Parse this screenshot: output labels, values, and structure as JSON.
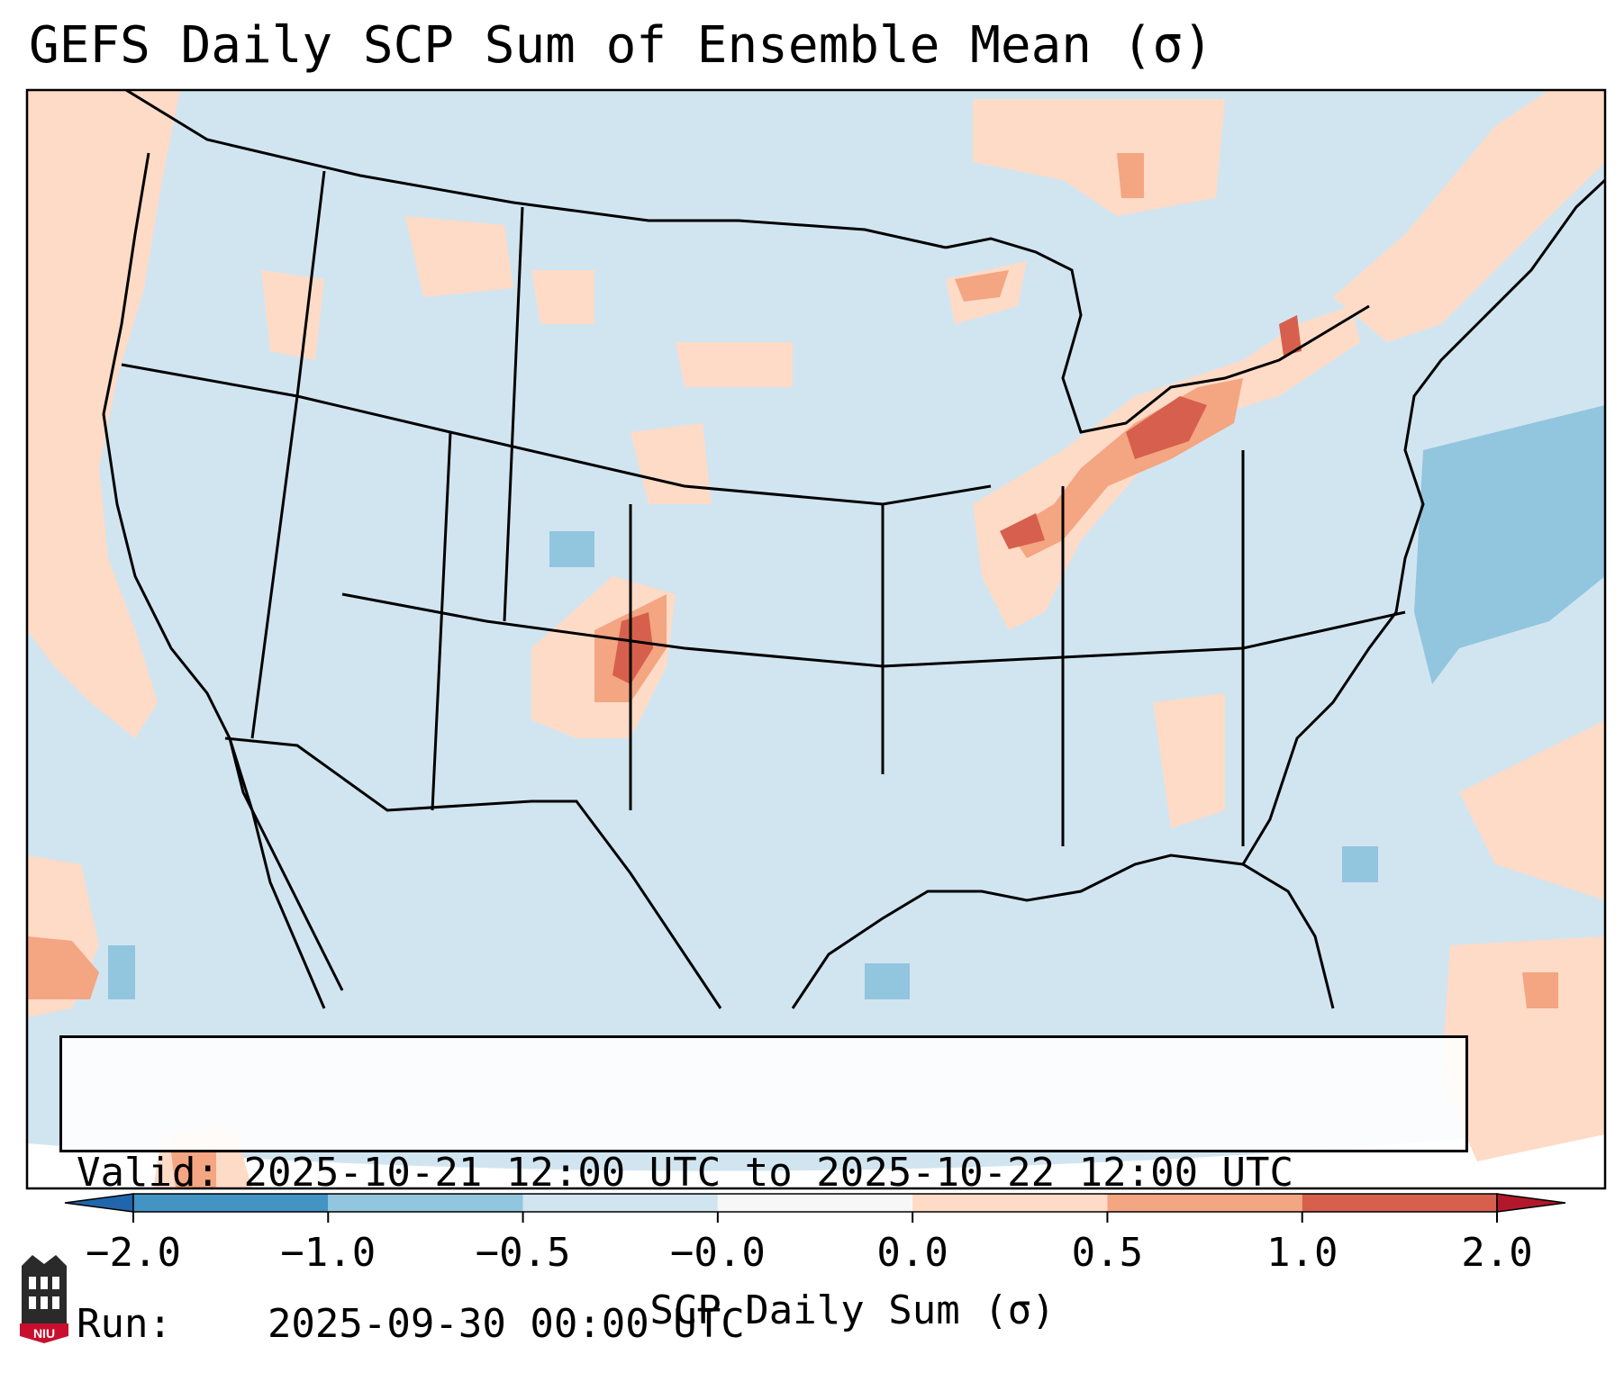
{
  "title": "GEFS Daily SCP Sum of Ensemble Mean (σ)",
  "info": {
    "valid_label": "Valid:",
    "valid_value": "2025-10-21 12:00 UTC to 2025-10-22 12:00 UTC",
    "run_label": "Run:",
    "run_value": "2025-09-30 00:00 UTC"
  },
  "colorbar": {
    "label": "SCP Daily Sum (σ)",
    "tick_labels": [
      "−2.0",
      "−1.0",
      "−0.5",
      "−0.0",
      "0.0",
      "0.5",
      "1.0",
      "2.0"
    ],
    "extend": "both",
    "colors": [
      "#2166ac",
      "#4393c3",
      "#92c5de",
      "#d1e5f0",
      "#f7f7f7",
      "#fddbc7",
      "#f4a582",
      "#d6604d",
      "#b2182b"
    ]
  },
  "map": {
    "background_color": "#d1e5f0",
    "positive_weak_color": "#fddbc7",
    "positive_mod_color": "#f4a582",
    "positive_strong_color": "#d6604d",
    "negative_weak_color": "#92c5de"
  },
  "logo": {
    "text": "NIU",
    "color": "#c8102e"
  }
}
